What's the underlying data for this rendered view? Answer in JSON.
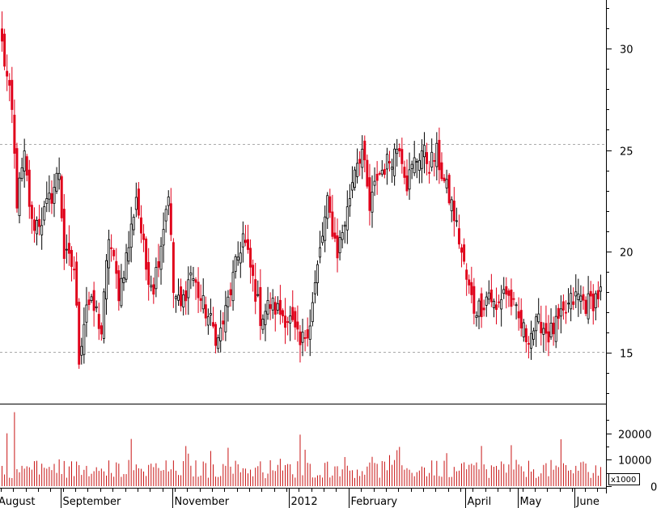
{
  "chart_data": {
    "type": "candlestick",
    "price_axis": {
      "ticks": [
        15,
        20,
        25,
        30
      ],
      "range": [
        12.5,
        32.4
      ],
      "reference_lines": [
        25.3,
        15.05
      ]
    },
    "volume_axis": {
      "ticks": [
        0,
        10000,
        20000
      ],
      "tick_labels": [
        "0",
        "10000",
        "20000"
      ],
      "unit_label": "x1000",
      "range": [
        0,
        30000
      ]
    },
    "x_axis": {
      "labels": [
        {
          "text": "August",
          "index": 0
        },
        {
          "text": "September",
          "index": 24
        },
        {
          "text": "November",
          "index": 69
        },
        {
          "text": "2012",
          "index": 116
        },
        {
          "text": "February",
          "index": 140
        },
        {
          "text": "April",
          "index": 187
        },
        {
          "text": "May",
          "index": 208
        },
        {
          "text": "June",
          "index": 231
        }
      ]
    },
    "colors": {
      "up": "#000000",
      "down": "#e0001a",
      "volume": "#c81414"
    },
    "series_anchors": [
      [
        0,
        30.2
      ],
      [
        4,
        26.8
      ],
      [
        6,
        22.5
      ],
      [
        9,
        24.6
      ],
      [
        12,
        21.3
      ],
      [
        16,
        21.6
      ],
      [
        20,
        22.8
      ],
      [
        23,
        24.0
      ],
      [
        25,
        19.8
      ],
      [
        29,
        19.2
      ],
      [
        31,
        14.8
      ],
      [
        34,
        17.5
      ],
      [
        38,
        17.0
      ],
      [
        40,
        16.0
      ],
      [
        43,
        20.8
      ],
      [
        47,
        18.0
      ],
      [
        51,
        20.3
      ],
      [
        54,
        22.8
      ],
      [
        58,
        19.2
      ],
      [
        61,
        18.3
      ],
      [
        64,
        20.5
      ],
      [
        67,
        23.0
      ],
      [
        69,
        18.0
      ],
      [
        72,
        17.2
      ],
      [
        76,
        19.0
      ],
      [
        80,
        17.6
      ],
      [
        84,
        16.5
      ],
      [
        87,
        15.6
      ],
      [
        90,
        17.0
      ],
      [
        94,
        19.2
      ],
      [
        97,
        20.8
      ],
      [
        101,
        18.6
      ],
      [
        104,
        16.8
      ],
      [
        108,
        17.4
      ],
      [
        112,
        17.0
      ],
      [
        116,
        16.6
      ],
      [
        120,
        15.3
      ],
      [
        124,
        16.6
      ],
      [
        128,
        20.0
      ],
      [
        131,
        22.3
      ],
      [
        135,
        20.0
      ],
      [
        139,
        22.0
      ],
      [
        142,
        24.3
      ],
      [
        145,
        25.0
      ],
      [
        148,
        22.0
      ],
      [
        151,
        23.7
      ],
      [
        154,
        24.2
      ],
      [
        157,
        24.7
      ],
      [
        160,
        25.4
      ],
      [
        163,
        23.4
      ],
      [
        166,
        24.4
      ],
      [
        169,
        25.0
      ],
      [
        172,
        24.3
      ],
      [
        175,
        24.8
      ],
      [
        178,
        23.4
      ],
      [
        181,
        22.3
      ],
      [
        184,
        20.6
      ],
      [
        187,
        18.6
      ],
      [
        190,
        17.2
      ],
      [
        193,
        17.3
      ],
      [
        196,
        18.0
      ],
      [
        199,
        17.0
      ],
      [
        202,
        18.2
      ],
      [
        205,
        17.5
      ],
      [
        208,
        16.6
      ],
      [
        211,
        15.8
      ],
      [
        214,
        16.2
      ],
      [
        217,
        16.5
      ],
      [
        220,
        15.9
      ],
      [
        223,
        16.3
      ],
      [
        226,
        16.8
      ],
      [
        229,
        17.5
      ],
      [
        232,
        17.8
      ],
      [
        235,
        17.4
      ],
      [
        238,
        17.6
      ],
      [
        240,
        17.9
      ]
    ]
  }
}
